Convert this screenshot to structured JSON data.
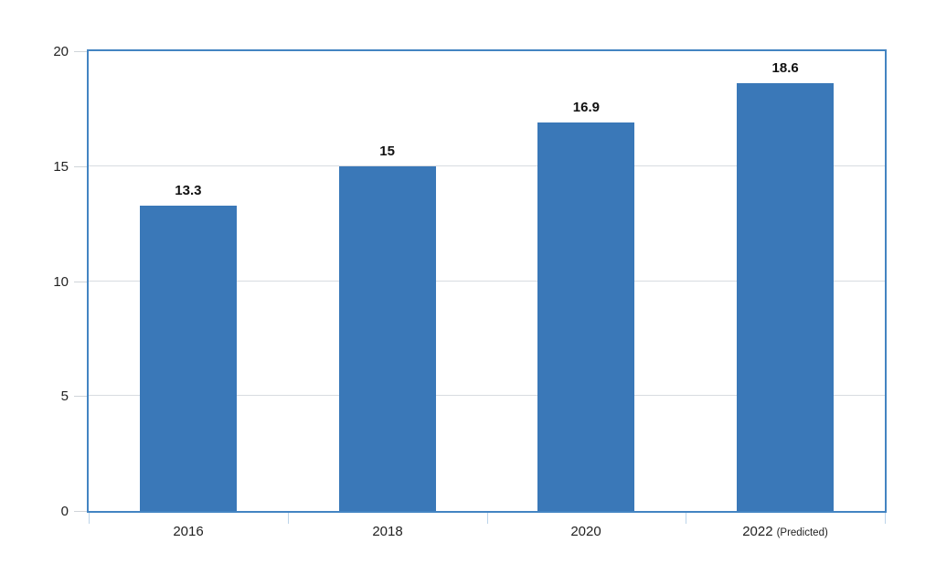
{
  "chart_data": {
    "type": "bar",
    "title": "",
    "xlabel": "",
    "ylabel": "",
    "categories": [
      "2016",
      "2018",
      "2020",
      "2022"
    ],
    "category_suffixes": [
      "",
      "",
      "",
      "(Predicted)"
    ],
    "values": [
      13.3,
      15,
      16.9,
      18.6
    ],
    "value_labels": [
      "13.3",
      "15",
      "16.9",
      "18.6"
    ],
    "ylim": [
      0,
      20
    ],
    "yticks": [
      0,
      5,
      10,
      15,
      20
    ],
    "grid": true,
    "legend": "none",
    "bar_color": "#3a78b8",
    "frame_color": "#4384c2",
    "gridline_color": "#d8dce1",
    "y_tick_color": "#cfd4d9",
    "x_tick_color": "#bcd4ea",
    "label_color": "#111111"
  }
}
